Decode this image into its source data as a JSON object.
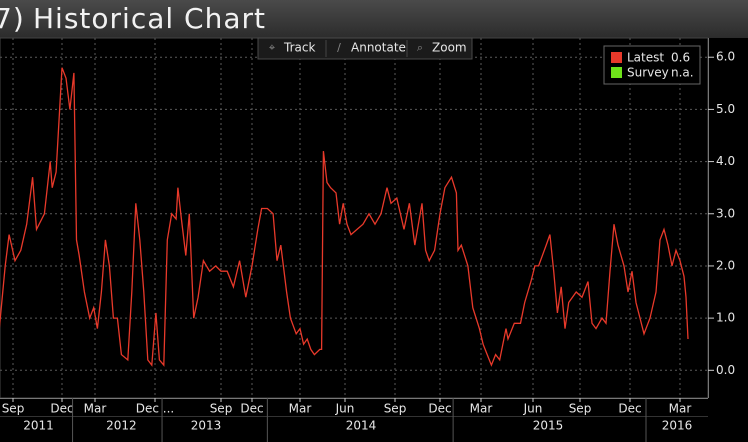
{
  "chart_data": {
    "type": "line",
    "title_prefix": "7)",
    "title": "Historical Chart",
    "toolbar": [
      "Track",
      "Annotate",
      "Zoom"
    ],
    "legend": [
      {
        "name": "Latest",
        "color": "#e8392a",
        "value": 0.6
      },
      {
        "name": "Survey",
        "color": "#6fe31a",
        "value": "n.a."
      }
    ],
    "x": [
      2011.6,
      2011.63,
      2011.65,
      2011.68,
      2011.71,
      2011.74,
      2011.77,
      2011.79,
      2011.83,
      2011.86,
      2011.87,
      2011.89,
      2011.92,
      2011.95,
      2011.98,
      2012.01,
      2012.03,
      2012.05,
      2012.09,
      2012.13,
      2012.16,
      2012.2,
      2012.25,
      2012.3,
      2012.35,
      2012.4,
      2012.45,
      2012.5,
      2012.58,
      2012.63,
      2012.68,
      2012.73,
      2012.78,
      2012.83,
      2012.88,
      2012.93,
      2012.97,
      2013.02,
      2013.06,
      2013.11,
      2013.16,
      2013.18,
      2013.22,
      2013.27,
      2013.31,
      2013.36,
      2013.41,
      2013.47,
      2013.54,
      2013.61,
      2013.67,
      2013.72,
      2013.77,
      2013.82,
      2013.87,
      2013.92,
      2013.95,
      2013.97,
      2014.0,
      2014.03,
      2014.05,
      2014.07,
      2014.1,
      2014.12,
      2014.15,
      2014.17,
      2014.19,
      2014.21,
      2014.23,
      2014.25,
      2014.28,
      2014.29,
      2014.3,
      2014.32,
      2014.34,
      2014.37,
      2014.39,
      2014.41,
      2014.43,
      2014.45,
      2014.48,
      2014.51,
      2014.54,
      2014.57,
      2014.6,
      2014.63,
      2014.65,
      2014.68,
      2014.72,
      2014.75,
      2014.78,
      2014.82,
      2014.84,
      2014.86,
      2014.89,
      2014.92,
      2014.95,
      2014.99,
      2015.02,
      2015.03,
      2015.05,
      2015.09,
      2015.12,
      2015.16,
      2015.18,
      2015.2,
      2015.22,
      2015.24,
      2015.26,
      2015.29,
      2015.3,
      2015.33,
      2015.36,
      2015.38,
      2015.41,
      2015.43,
      2015.45,
      2015.49,
      2015.51,
      2015.53,
      2015.55,
      2015.57,
      2015.59,
      2015.61,
      2015.65,
      2015.68,
      2015.71,
      2015.73,
      2015.75,
      2015.78,
      2015.8,
      2015.82,
      2015.84,
      2015.86,
      2015.89,
      2015.91,
      2015.93,
      2015.95,
      2015.97,
      2015.99,
      2016.02,
      2016.05,
      2016.07,
      2016.09,
      2016.11,
      2016.13,
      2016.15,
      2016.17,
      2016.19,
      2016.2,
      2016.21
    ],
    "series": [
      {
        "name": "Latest",
        "color": "#e8392a",
        "values": [
          0.8,
          2.0,
          2.6,
          2.1,
          2.3,
          2.8,
          3.7,
          2.7,
          3.0,
          4.0,
          3.5,
          3.8,
          5.8,
          5.6,
          5.0,
          5.7,
          2.5,
          2.2,
          1.5,
          1.0,
          1.2,
          0.8,
          1.5,
          2.5,
          2.0,
          1.0,
          1.0,
          0.3,
          0.2,
          1.5,
          3.2,
          2.5,
          1.5,
          0.2,
          0.1,
          1.1,
          0.2,
          0.1,
          2.5,
          3.0,
          2.9,
          3.5,
          2.9,
          2.2,
          3.0,
          1.0,
          1.4,
          2.1,
          1.9,
          2.0,
          1.9,
          1.9,
          1.6,
          2.1,
          1.4,
          2.0,
          2.7,
          3.1,
          3.1,
          3.0,
          2.1,
          2.4,
          1.5,
          1.0,
          0.7,
          0.8,
          0.5,
          0.6,
          0.4,
          0.3,
          0.4,
          0.4,
          4.2,
          3.6,
          3.5,
          3.4,
          2.8,
          3.2,
          2.8,
          2.6,
          2.7,
          2.8,
          3.0,
          2.8,
          3.0,
          3.5,
          3.2,
          3.3,
          2.7,
          3.2,
          2.4,
          3.2,
          2.3,
          2.1,
          2.3,
          3.0,
          3.5,
          3.7,
          3.4,
          2.3,
          2.4,
          2.0,
          1.2,
          0.8,
          0.5,
          0.3,
          0.1,
          0.3,
          0.2,
          0.8,
          0.6,
          0.9,
          0.9,
          1.3,
          1.7,
          2.0,
          2.0,
          2.4,
          2.6,
          1.9,
          1.1,
          1.6,
          0.8,
          1.3,
          1.5,
          1.4,
          1.7,
          0.9,
          0.8,
          1.0,
          0.9,
          1.9,
          2.8,
          2.4,
          2.0,
          1.5,
          1.9,
          1.3,
          1.0,
          0.7,
          1.0,
          1.5,
          2.5,
          2.7,
          2.4,
          2.0,
          2.3,
          2.1,
          1.8,
          1.4,
          0.6
        ]
      }
    ],
    "xlim": [
      2011.6,
      2016.31
    ],
    "xticks": [
      {
        "value": 2011.67,
        "label": "Sep"
      },
      {
        "value": 2011.92,
        "label": "Dec"
      },
      {
        "value": 2012.17,
        "label": "Mar"
      },
      {
        "value": 2012.92,
        "label": "Dec ..."
      },
      {
        "value": 2013.67,
        "label": "Sep"
      },
      {
        "value": 2013.92,
        "label": "Dec"
      },
      {
        "value": 2014.17,
        "label": "Mar"
      },
      {
        "value": 2014.42,
        "label": "Jun"
      },
      {
        "value": 2014.67,
        "label": "Sep"
      },
      {
        "value": 2014.92,
        "label": "Dec"
      },
      {
        "value": 2015.17,
        "label": "Mar"
      },
      {
        "value": 2015.42,
        "label": "Jun"
      },
      {
        "value": 2015.67,
        "label": "Sep"
      },
      {
        "value": 2015.92,
        "label": "Dec"
      },
      {
        "value": 2016.17,
        "label": "Mar"
      }
    ],
    "year_labels": [
      2011,
      2012,
      2013,
      2014,
      2015,
      2016
    ],
    "ylim": [
      -0.55,
      6.33
    ],
    "yticks": [
      {
        "value": 0,
        "label": "0.0"
      },
      {
        "value": 1,
        "label": "1.0"
      },
      {
        "value": 2,
        "label": "2.0"
      },
      {
        "value": 3,
        "label": "3.0"
      },
      {
        "value": 4,
        "label": "4.0"
      },
      {
        "value": 5,
        "label": "5.0"
      },
      {
        "value": 6,
        "label": "6.0"
      }
    ],
    "grid": true
  }
}
